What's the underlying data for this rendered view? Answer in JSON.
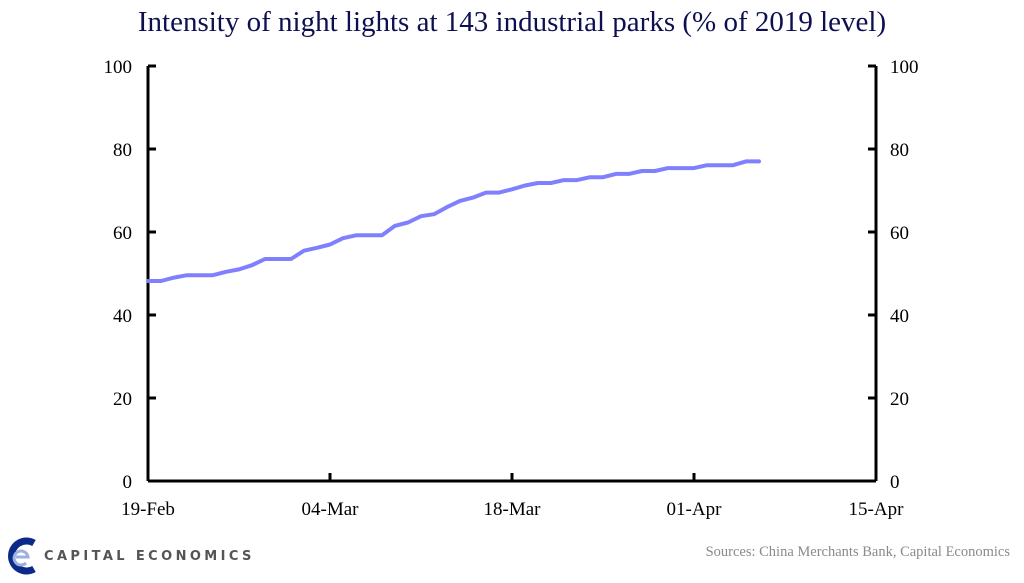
{
  "chart_data": {
    "type": "line",
    "title": "Intensity of night lights at 143 industrial parks (% of 2019 level)",
    "xlabel": "",
    "ylabel": "",
    "ylim": [
      0,
      100
    ],
    "yticks": [
      0,
      20,
      40,
      60,
      80,
      100
    ],
    "xlim": [
      "19-Feb",
      "15-Apr"
    ],
    "xticks": [
      "19-Feb",
      "04-Mar",
      "18-Mar",
      "01-Apr",
      "15-Apr"
    ],
    "grid": false,
    "legend": "none",
    "line_color": "#8080ff",
    "x": [
      "19-Feb",
      "20-Feb",
      "21-Feb",
      "22-Feb",
      "23-Feb",
      "24-Feb",
      "25-Feb",
      "26-Feb",
      "27-Feb",
      "28-Feb",
      "29-Feb",
      "01-Mar",
      "02-Mar",
      "03-Mar",
      "04-Mar",
      "05-Mar",
      "06-Mar",
      "07-Mar",
      "08-Mar",
      "09-Mar",
      "10-Mar",
      "11-Mar",
      "12-Mar",
      "13-Mar",
      "14-Mar",
      "15-Mar",
      "16-Mar",
      "17-Mar",
      "18-Mar",
      "19-Mar",
      "20-Mar",
      "21-Mar",
      "22-Mar",
      "23-Mar",
      "24-Mar",
      "25-Mar",
      "26-Mar",
      "27-Mar",
      "28-Mar",
      "29-Mar",
      "30-Mar",
      "31-Mar",
      "01-Apr",
      "02-Apr",
      "03-Apr",
      "04-Apr",
      "05-Apr",
      "06-Apr"
    ],
    "values": [
      48.2,
      48.2,
      49.0,
      49.6,
      49.6,
      49.6,
      50.4,
      51.0,
      52.0,
      53.5,
      53.5,
      53.5,
      55.5,
      56.2,
      57.0,
      58.5,
      59.2,
      59.2,
      59.2,
      61.5,
      62.3,
      63.8,
      64.3,
      66.0,
      67.5,
      68.3,
      69.5,
      69.5,
      70.3,
      71.2,
      71.8,
      71.8,
      72.5,
      72.5,
      73.2,
      73.2,
      74.0,
      74.0,
      74.7,
      74.7,
      75.4,
      75.4,
      75.4,
      76.1,
      76.1,
      76.1,
      77.0,
      77.0
    ]
  },
  "footer": {
    "source": "Sources: China Merchants Bank, Capital Economics",
    "logo_text": "CAPITAL ECONOMICS"
  }
}
